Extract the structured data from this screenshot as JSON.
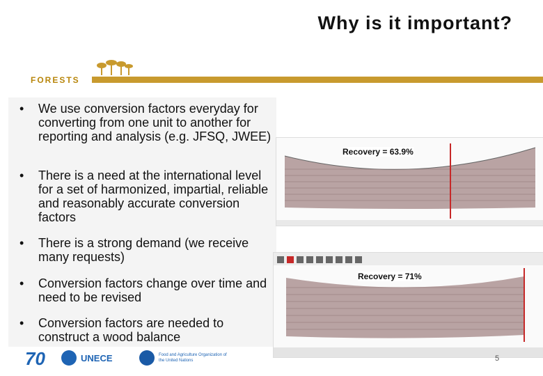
{
  "slide": {
    "title": "Why is it important?",
    "section_label": "FORESTS",
    "page_number": "5"
  },
  "bullets": [
    "We use conversion factors everyday for converting from one unit to another for reporting and analysis (e.g. JFSQ, JWEE)",
    "There is a need at the international level for a set of harmonized, impartial, reliable and reasonably accurate conversion factors",
    "There is a strong demand (we receive many requests)",
    "Conversion factors change over time and need to be revised",
    "Conversion factors are needed to construct a wood balance"
  ],
  "bullet_marker": "•",
  "images": {
    "scan1_recovery": "Recovery = 63.9%",
    "scan2_recovery": "Recovery = 71%"
  },
  "footer": {
    "logo_number": "70",
    "unece_label": "UNECE",
    "fao_label": "Food and Agriculture Organization of the United Nations"
  },
  "colors": {
    "accent_gold": "#c89a2e",
    "log_fill": "#b9a3a3",
    "cut_line_red": "#c62828",
    "un_blue": "#1e64b4"
  }
}
